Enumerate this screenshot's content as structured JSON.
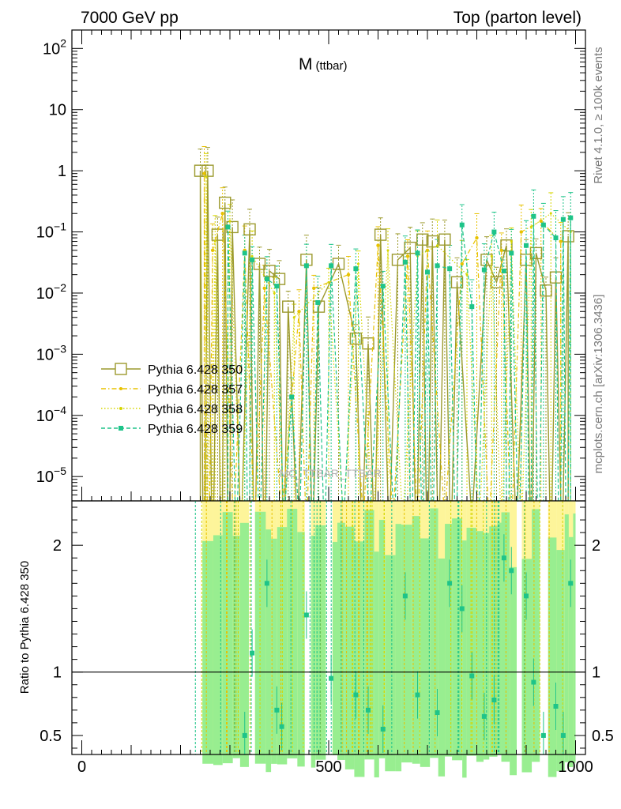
{
  "header": {
    "left_label": "7000 GeV pp",
    "right_label": "Top (parton level)"
  },
  "side_labels": {
    "rivet": "Rivet 4.1.0, ≥ 100k events",
    "mcplots": "mcplots.cern.ch [arXiv:1306.3436]"
  },
  "chart_data": {
    "type": "scatter",
    "title_main": "M",
    "title_sub": "(ttbar)",
    "watermark": "MC_TTBAR_TTBAR",
    "xlim": [
      -20,
      1020
    ],
    "ylim": [
      4e-06,
      200
    ],
    "yscale": "log",
    "xticks": [
      {
        "value": 0,
        "label": "0"
      },
      {
        "value": 500,
        "label": "500"
      },
      {
        "value": 1000,
        "label": "1000"
      }
    ],
    "yticks": [
      {
        "value": 1e-05,
        "base": "10",
        "exp": "−5"
      },
      {
        "value": 0.0001,
        "base": "10",
        "exp": "−4"
      },
      {
        "value": 0.001,
        "base": "10",
        "exp": "−3"
      },
      {
        "value": 0.01,
        "base": "10",
        "exp": "−2"
      },
      {
        "value": 0.1,
        "base": "10",
        "exp": "−1"
      },
      {
        "value": 1,
        "base": "1",
        "exp": ""
      },
      {
        "value": 10,
        "base": "10",
        "exp": ""
      },
      {
        "value": 100,
        "base": "10",
        "exp": "2"
      }
    ],
    "legend": [
      {
        "label": "Pythia 6.428 350",
        "color": "#9c9a2e",
        "marker": "open-square",
        "dash": "solid"
      },
      {
        "label": "Pythia 6.428 357",
        "color": "#e8c200",
        "marker": "star",
        "dash": "dashdot"
      },
      {
        "label": "Pythia 6.428 358",
        "color": "#d6d600",
        "marker": "dot",
        "dash": "dotted"
      },
      {
        "label": "Pythia 6.428 359",
        "color": "#1ec489",
        "marker": "filled-square",
        "dash": "dashed"
      }
    ],
    "series": [
      {
        "name": "Pythia 6.428 350",
        "color": "#9c9a2e",
        "points": [
          [
            240,
            1.0
          ],
          [
            255,
            1.0
          ],
          [
            275,
            0.09
          ],
          [
            290,
            0.3
          ],
          [
            305,
            0.12
          ],
          [
            340,
            0.11
          ],
          [
            360,
            0.03
          ],
          [
            380,
            0.023
          ],
          [
            400,
            0.017
          ],
          [
            418,
            0.006
          ],
          [
            455,
            0.035
          ],
          [
            480,
            0.006
          ],
          [
            520,
            0.03
          ],
          [
            555,
            0.0018
          ],
          [
            580,
            0.0015
          ],
          [
            605,
            0.09
          ],
          [
            640,
            0.035
          ],
          [
            665,
            0.055
          ],
          [
            690,
            0.075
          ],
          [
            710,
            0.07
          ],
          [
            735,
            0.075
          ],
          [
            760,
            0.015
          ],
          [
            820,
            0.035
          ],
          [
            840,
            0.015
          ],
          [
            860,
            0.06
          ],
          [
            900,
            0.035
          ],
          [
            920,
            0.045
          ],
          [
            940,
            0.011
          ],
          [
            960,
            0.018
          ],
          [
            985,
            0.085
          ]
        ]
      },
      {
        "name": "Pythia 6.428 357",
        "color": "#e8c200",
        "points": [
          [
            248,
            0.9
          ],
          [
            265,
            0.05
          ],
          [
            285,
            0.2
          ],
          [
            330,
            0.05
          ],
          [
            370,
            0.012
          ],
          [
            440,
            0.005
          ],
          [
            470,
            0.012
          ],
          [
            540,
            0.02
          ],
          [
            600,
            0.06
          ],
          [
            660,
            0.04
          ],
          [
            700,
            0.05
          ],
          [
            770,
            0.03
          ],
          [
            800,
            0.08
          ],
          [
            850,
            0.05
          ],
          [
            890,
            0.1
          ],
          [
            930,
            0.15
          ],
          [
            970,
            0.07
          ]
        ]
      },
      {
        "name": "Pythia 6.428 358",
        "color": "#d6d600",
        "points": [
          [
            252,
            0.8
          ],
          [
            270,
            0.07
          ],
          [
            300,
            0.15
          ],
          [
            345,
            0.04
          ],
          [
            390,
            0.01
          ],
          [
            430,
            0.004
          ],
          [
            500,
            0.015
          ],
          [
            560,
            0.03
          ],
          [
            620,
            0.05
          ],
          [
            680,
            0.04
          ],
          [
            720,
            0.06
          ],
          [
            780,
            0.02
          ],
          [
            830,
            0.04
          ],
          [
            870,
            0.07
          ],
          [
            910,
            0.12
          ],
          [
            950,
            0.2
          ],
          [
            990,
            0.1
          ]
        ]
      },
      {
        "name": "Pythia 6.428 359",
        "color": "#1ec489",
        "points": [
          [
            296,
            0.12
          ],
          [
            330,
            0.045
          ],
          [
            345,
            0.035
          ],
          [
            375,
            0.017
          ],
          [
            395,
            0.013
          ],
          [
            425,
            0.0002
          ],
          [
            455,
            0.028
          ],
          [
            478,
            0.007
          ],
          [
            505,
            0.028
          ],
          [
            555,
            0.025
          ],
          [
            610,
            0.013
          ],
          [
            655,
            0.032
          ],
          [
            680,
            0.045
          ],
          [
            700,
            0.022
          ],
          [
            720,
            0.028
          ],
          [
            745,
            0.025
          ],
          [
            770,
            0.13
          ],
          [
            790,
            0.006
          ],
          [
            815,
            0.024
          ],
          [
            835,
            0.1
          ],
          [
            855,
            0.023
          ],
          [
            870,
            0.045
          ],
          [
            900,
            0.06
          ],
          [
            915,
            0.18
          ],
          [
            935,
            0.13
          ],
          [
            960,
            0.08
          ],
          [
            975,
            0.16
          ],
          [
            990,
            0.17
          ]
        ]
      }
    ],
    "ratio": {
      "ylabel": "Ratio to Pythia 6.428 350",
      "ylim": [
        0.35,
        2.35
      ],
      "yticks": [
        {
          "value": 0.5,
          "label": "0.5"
        },
        {
          "value": 1,
          "label": "1"
        },
        {
          "value": 2,
          "label": "2"
        }
      ],
      "reference": 1,
      "band_range": [
        230,
        1000
      ],
      "points": [
        [
          330,
          0.5
        ],
        [
          345,
          1.15
        ],
        [
          375,
          1.7
        ],
        [
          395,
          0.7
        ],
        [
          405,
          0.57
        ],
        [
          455,
          1.45
        ],
        [
          505,
          0.95
        ],
        [
          555,
          0.82
        ],
        [
          580,
          0.7
        ],
        [
          610,
          0.55
        ],
        [
          655,
          1.6
        ],
        [
          680,
          0.82
        ],
        [
          720,
          0.68
        ],
        [
          745,
          1.7
        ],
        [
          770,
          1.5
        ],
        [
          790,
          0.97
        ],
        [
          815,
          0.65
        ],
        [
          835,
          0.78
        ],
        [
          855,
          1.9
        ],
        [
          870,
          1.8
        ],
        [
          900,
          1.6
        ],
        [
          915,
          0.92
        ],
        [
          935,
          0.5
        ],
        [
          960,
          0.73
        ],
        [
          975,
          0.5
        ],
        [
          990,
          1.7
        ]
      ]
    }
  }
}
